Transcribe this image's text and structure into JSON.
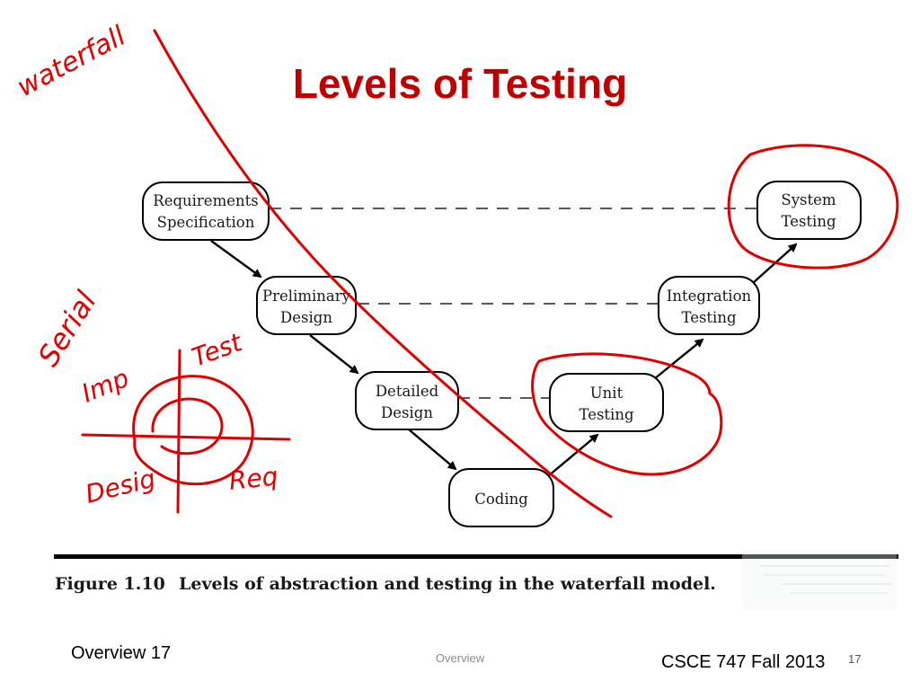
{
  "slide": {
    "title": "Levels of Testing",
    "footer_left": "Overview 17",
    "footer_center": "Overview",
    "footer_right": "CSCE 747 Fall 2013",
    "slide_number": "17"
  },
  "diagram": {
    "nodes": {
      "requirements": [
        "Requirements",
        "Specification"
      ],
      "preliminary": [
        "Preliminary",
        "Design"
      ],
      "detailed": [
        "Detailed",
        "Design"
      ],
      "coding": [
        "Coding"
      ],
      "unit": [
        "Unit",
        "Testing"
      ],
      "integration": [
        "Integration",
        "Testing"
      ],
      "system": [
        "System",
        "Testing"
      ]
    },
    "caption_label": "Figure 1.10",
    "caption_text": "Levels of abstraction and testing in the waterfall model."
  },
  "annotations": {
    "handwritten": [
      "waterfall",
      "Serial",
      "Imp",
      "Test",
      "Desig",
      "Req"
    ],
    "ink_color": "#e00000"
  }
}
